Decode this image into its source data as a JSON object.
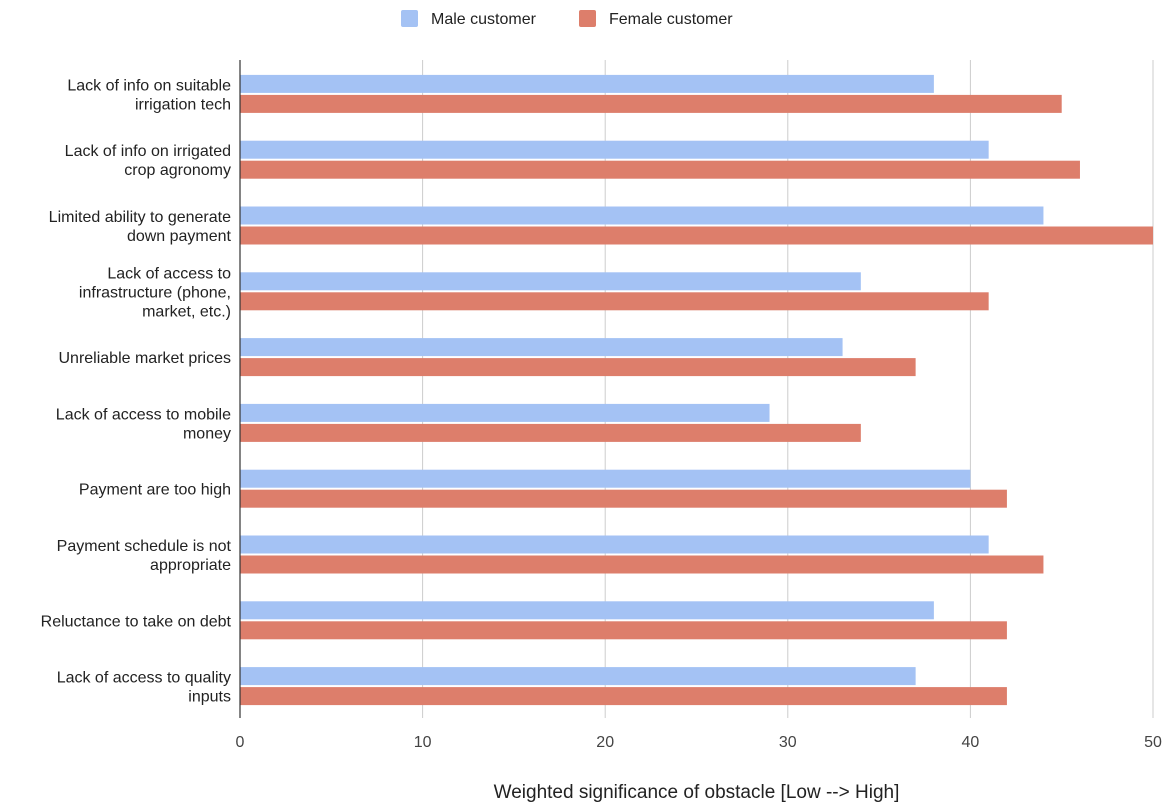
{
  "chart_data": {
    "type": "bar",
    "orientation": "horizontal",
    "categories": [
      [
        "Lack of info on suitable",
        "irrigation tech"
      ],
      [
        "Lack of info on irrigated",
        "crop agronomy"
      ],
      [
        "Limited ability to generate",
        "down payment"
      ],
      [
        "Lack of access to",
        "infrastructure (phone,",
        "market, etc.)"
      ],
      [
        "Unreliable market prices"
      ],
      [
        "Lack of access to mobile",
        "money"
      ],
      [
        "Payment are too high"
      ],
      [
        "Payment schedule is not",
        "appropriate"
      ],
      [
        "Reluctance to take on debt"
      ],
      [
        "Lack of access to quality",
        "inputs"
      ]
    ],
    "series": [
      {
        "name": "Male customer",
        "color": "#a4c2f4",
        "values": [
          38,
          41,
          44,
          34,
          33,
          29,
          40,
          41,
          38,
          37
        ]
      },
      {
        "name": "Female customer",
        "color": "#dd7e6b",
        "values": [
          45,
          46,
          50,
          41,
          37,
          34,
          42,
          44,
          42,
          42
        ]
      }
    ],
    "xlabel": "Weighted significance of obstacle [Low --> High]",
    "xlim": [
      0,
      50
    ],
    "xticks": [
      0,
      10,
      20,
      30,
      40,
      50
    ],
    "grid": "vertical",
    "legend_position": "top"
  }
}
